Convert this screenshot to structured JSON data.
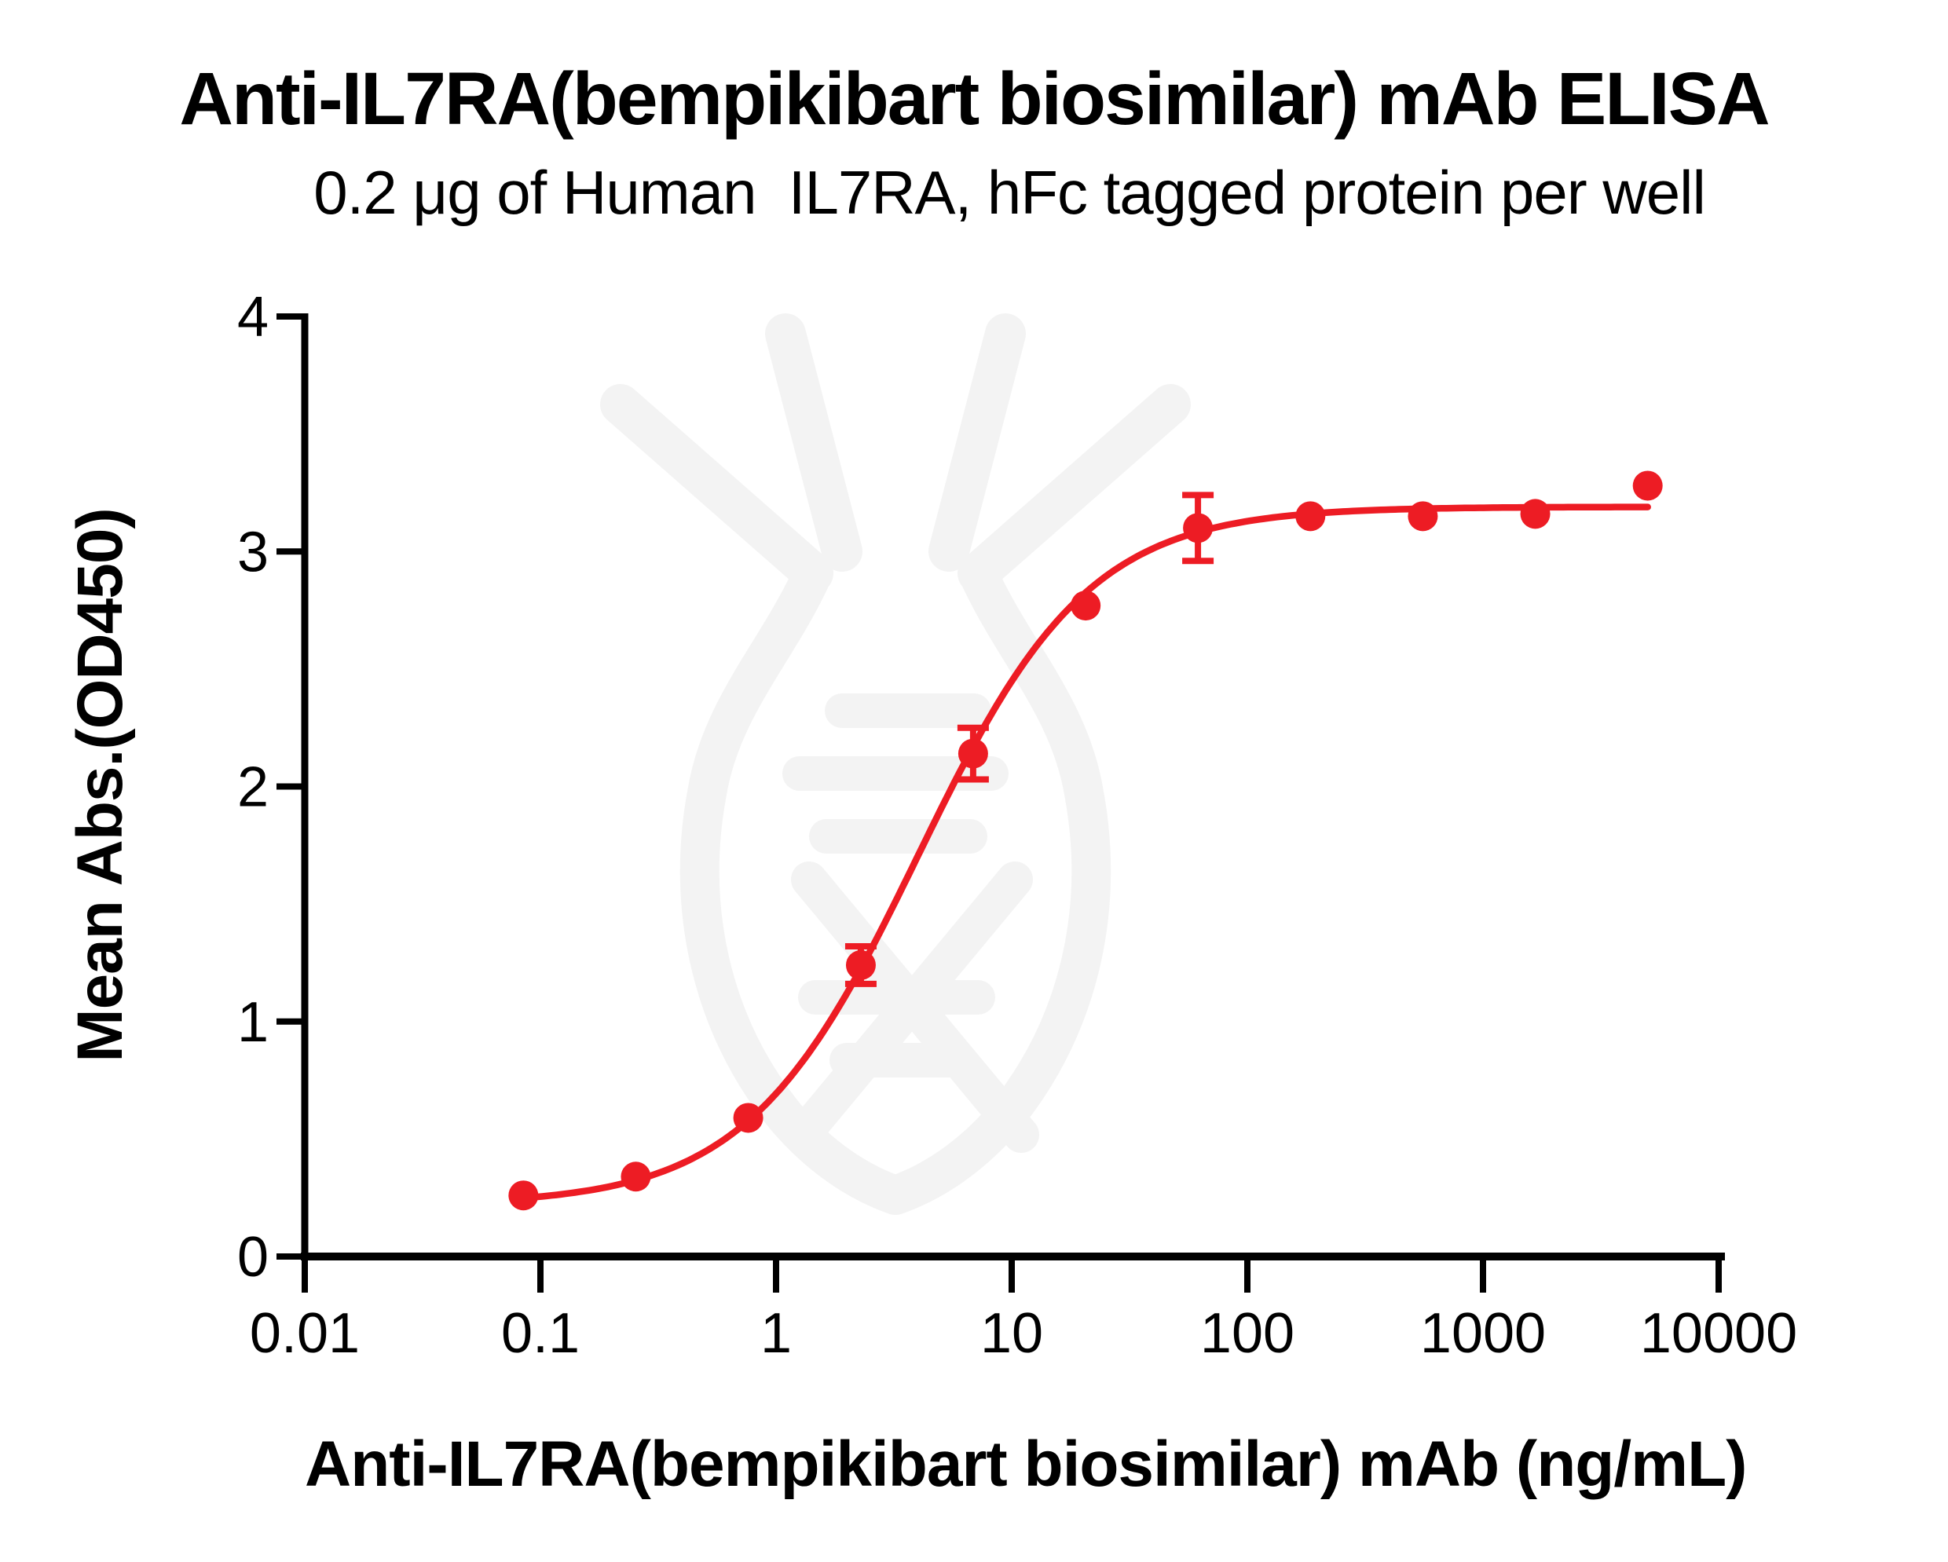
{
  "page": {
    "background": "#ffffff"
  },
  "chart_data": {
    "type": "scatter",
    "title": "Anti-IL7RA(bempikibart biosimilar) mAb ELISA",
    "subtitle": "0.2 μg of Human  IL7RA, hFc tagged protein per well",
    "xlabel": "Anti-IL7RA(bempikibart biosimilar) mAb (ng/mL)",
    "ylabel": "Mean Abs.(OD450)",
    "x_scale": "log",
    "xlim": [
      0.01,
      10000
    ],
    "ylim": [
      0,
      4
    ],
    "x_tick_values": [
      0.01,
      0.1,
      1,
      10,
      100,
      1000,
      10000
    ],
    "x_tick_labels": [
      "0.01",
      "0.1",
      "1",
      "10",
      "100",
      "1000",
      "10000"
    ],
    "y_tick_values": [
      0,
      1,
      2,
      3,
      4
    ],
    "y_tick_labels": [
      "0",
      "1",
      "2",
      "3",
      "4"
    ],
    "grid": false,
    "legend": "none",
    "axis_color": "#000000",
    "watermark": "antibody-dna-logo",
    "watermark_color": "#f3f3f3",
    "series": [
      {
        "name": "Anti-IL7RA(bempikibart biosimilar) mAb",
        "color": "#ed1c24",
        "marker": "circle",
        "points": [
          {
            "x": 0.0847,
            "y": 0.26,
            "sd": 0
          },
          {
            "x": 0.254,
            "y": 0.34,
            "sd": 0
          },
          {
            "x": 0.762,
            "y": 0.59,
            "sd": 0
          },
          {
            "x": 2.29,
            "y": 1.24,
            "sd": 0.08
          },
          {
            "x": 6.86,
            "y": 2.14,
            "sd": 0.11
          },
          {
            "x": 20.6,
            "y": 2.77,
            "sd": 0
          },
          {
            "x": 61.7,
            "y": 3.1,
            "sd": 0.14
          },
          {
            "x": 185.2,
            "y": 3.15,
            "sd": 0
          },
          {
            "x": 555.6,
            "y": 3.15,
            "sd": 0
          },
          {
            "x": 1666.7,
            "y": 3.16,
            "sd": 0
          },
          {
            "x": 5000,
            "y": 3.28,
            "sd": 0
          }
        ],
        "fit": {
          "model": "4PL",
          "bottom": 0.22,
          "top": 3.19,
          "ec50": 4.0,
          "hill": 1.2,
          "range": [
            0.0847,
            5000
          ]
        }
      }
    ]
  }
}
